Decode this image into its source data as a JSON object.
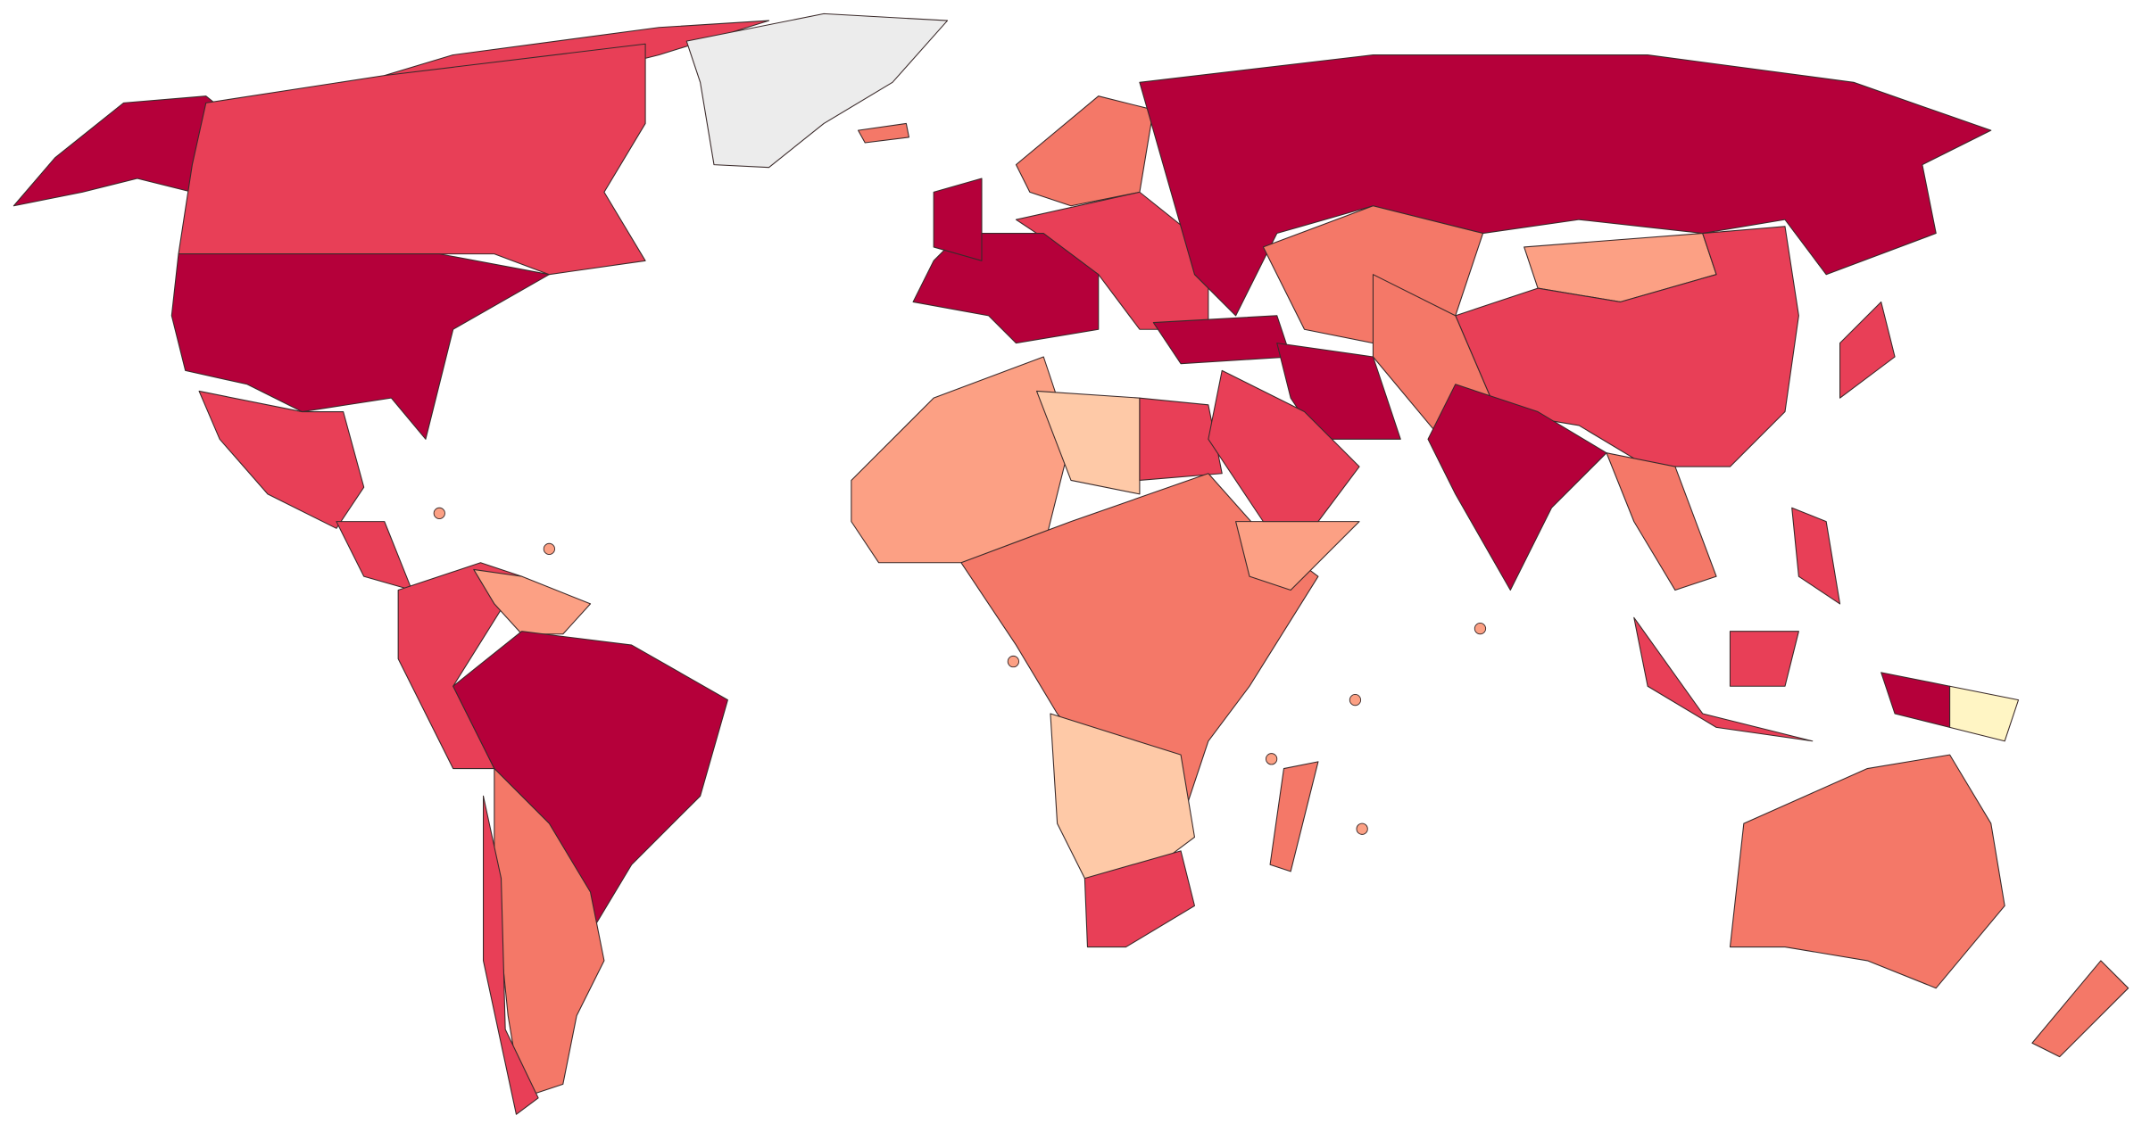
{
  "chart_data": {
    "type": "map",
    "colors": [
      "#b5003a",
      "#e83f57",
      "#f47868",
      "#fca084",
      "#fec9a7",
      "#fff5c4",
      "#ececec"
    ]
  }
}
